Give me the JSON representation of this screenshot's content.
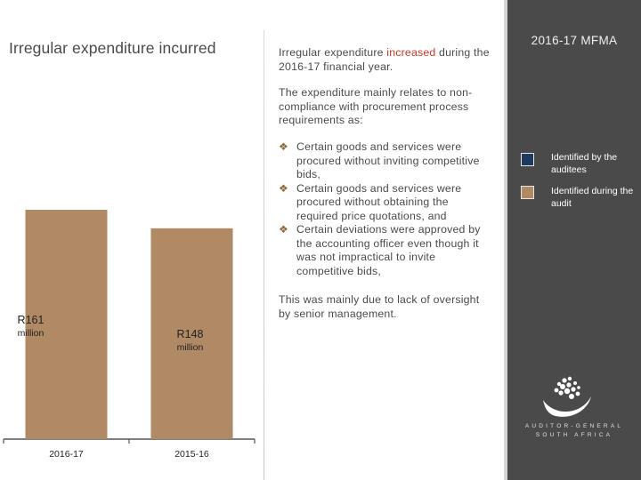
{
  "slide": {
    "title": "Irregular expenditure incurred"
  },
  "text": {
    "intro_before": "Irregular expenditure ",
    "intro_highlight": "increased",
    "intro_after": " during the 2016-17 financial year.",
    "relates": "The expenditure mainly relates to non-compliance with procurement process requirements as:",
    "bullets": [
      "Certain goods and services were procured without inviting competitive bids,",
      "Certain goods and services were procured without obtaining the required price quotations, and",
      "Certain deviations were approved by the accounting officer even though it was not impractical to invite competitive bids,"
    ],
    "conclusion": "This was mainly due to lack of oversight by senior management."
  },
  "sidebar": {
    "title": "2016-17 MFMA",
    "legend": [
      {
        "label": "Identified by the auditees",
        "color": "#1f3a5f"
      },
      {
        "label": "Identified during the audit",
        "color": "#b08a64"
      }
    ],
    "logo_lines": [
      "AUDITOR-GENERAL",
      "SOUTH AFRICA"
    ]
  },
  "chart_data": {
    "type": "bar",
    "categories": [
      "2016-17",
      "2015-16"
    ],
    "values": [
      161,
      148
    ],
    "value_labels": [
      "R161 million",
      "R148 million"
    ],
    "colors": {
      "bar": "#b08a64",
      "axis": "#555555",
      "label": "#222222"
    },
    "title": "",
    "xlabel": "",
    "ylabel": ""
  }
}
